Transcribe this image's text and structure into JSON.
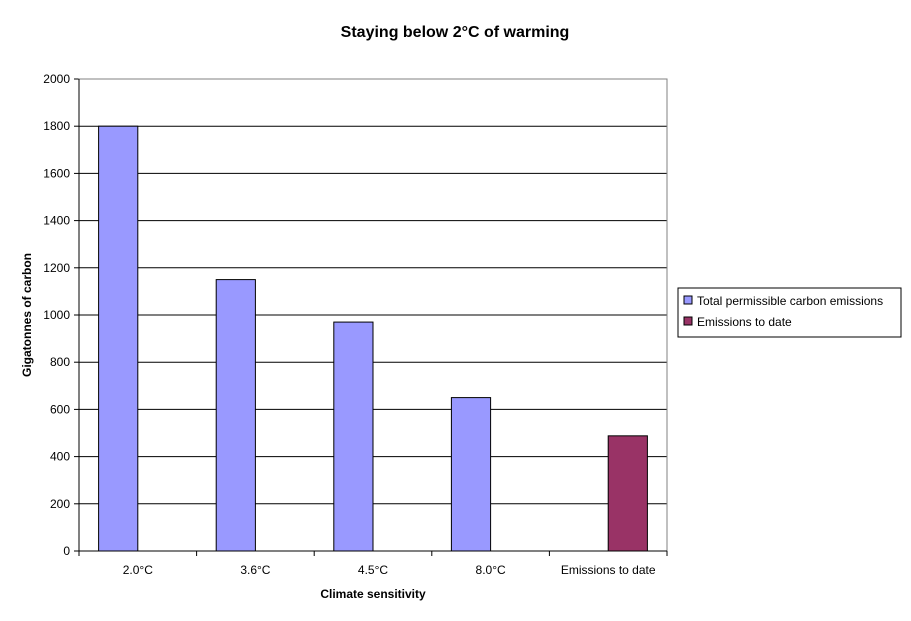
{
  "chart_data": {
    "type": "bar",
    "title": "Staying below 2°C of warming",
    "xlabel": "Climate sensitivity",
    "ylabel": "Gigatonnes of carbon",
    "categories": [
      "2.0°C",
      "3.6°C",
      "4.5°C",
      "8.0°C",
      "Emissions to date"
    ],
    "series": [
      {
        "name": "Total permissible carbon emissions",
        "color": "#9999ff",
        "values": [
          1800,
          1150,
          970,
          650,
          null
        ]
      },
      {
        "name": "Emissions to date",
        "color": "#993366",
        "values": [
          null,
          null,
          null,
          null,
          488
        ]
      }
    ],
    "ylim": [
      0,
      2000
    ],
    "yticks": [
      0,
      200,
      400,
      600,
      800,
      1000,
      1200,
      1400,
      1600,
      1800,
      2000
    ],
    "grid": true,
    "legend_position": "right"
  }
}
